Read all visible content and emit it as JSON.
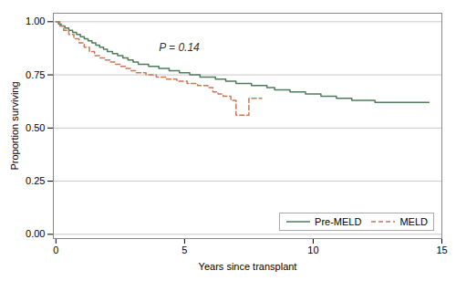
{
  "chart_data": {
    "type": "step",
    "xlabel": "Years since transplant",
    "ylabel": "Proportion surviving",
    "annotations": [
      {
        "text": "P = 0.14",
        "x": 4.0,
        "y": 0.86
      }
    ],
    "xlim": [
      -0.1,
      15
    ],
    "ylim": [
      -0.02,
      1.04
    ],
    "xticks": [
      0,
      5,
      10,
      15
    ],
    "yticks": [
      {
        "value": 0.0,
        "label": "0.00"
      },
      {
        "value": 0.25,
        "label": "0.25"
      },
      {
        "value": 0.5,
        "label": "0.50"
      },
      {
        "value": 0.75,
        "label": "0.75"
      },
      {
        "value": 1.0,
        "label": "1.00"
      }
    ],
    "grid": true,
    "legend": "lower right",
    "series": [
      {
        "name": "Pre-MELD",
        "color": "#4d7c5a",
        "line_style": "solid",
        "x": [
          0.0,
          0.1,
          0.2,
          0.35,
          0.5,
          0.65,
          0.8,
          0.95,
          1.1,
          1.25,
          1.4,
          1.55,
          1.7,
          1.85,
          2.0,
          2.2,
          2.4,
          2.6,
          2.8,
          3.0,
          3.2,
          3.4,
          3.6,
          3.8,
          4.0,
          4.2,
          4.4,
          4.6,
          4.8,
          5.0,
          5.2,
          5.4,
          5.6,
          5.8,
          6.0,
          6.2,
          6.4,
          6.6,
          6.8,
          7.0,
          7.3,
          7.6,
          7.9,
          8.2,
          8.5,
          8.8,
          9.1,
          9.4,
          9.7,
          10.0,
          10.3,
          10.6,
          10.9,
          11.2,
          11.5,
          11.8,
          12.1,
          12.4,
          13.0,
          13.5,
          14.0,
          14.5
        ],
        "values": [
          1.0,
          0.99,
          0.98,
          0.97,
          0.96,
          0.95,
          0.94,
          0.93,
          0.92,
          0.91,
          0.9,
          0.89,
          0.88,
          0.87,
          0.86,
          0.85,
          0.84,
          0.83,
          0.82,
          0.81,
          0.8,
          0.8,
          0.79,
          0.79,
          0.78,
          0.78,
          0.77,
          0.77,
          0.76,
          0.76,
          0.75,
          0.75,
          0.74,
          0.74,
          0.74,
          0.73,
          0.73,
          0.72,
          0.72,
          0.71,
          0.71,
          0.7,
          0.7,
          0.69,
          0.68,
          0.68,
          0.67,
          0.67,
          0.66,
          0.66,
          0.65,
          0.65,
          0.64,
          0.64,
          0.63,
          0.63,
          0.63,
          0.62,
          0.62,
          0.62,
          0.62,
          0.62
        ]
      },
      {
        "name": "MELD",
        "color": "#cc7755",
        "line_style": "dashed",
        "x": [
          0.0,
          0.15,
          0.3,
          0.5,
          0.7,
          0.9,
          1.1,
          1.3,
          1.5,
          1.7,
          1.9,
          2.1,
          2.3,
          2.5,
          2.7,
          2.9,
          3.1,
          3.3,
          3.5,
          3.7,
          3.9,
          4.1,
          4.3,
          4.5,
          4.7,
          4.9,
          5.1,
          5.3,
          5.5,
          5.7,
          5.9,
          6.1,
          6.3,
          6.5,
          6.8,
          7.0,
          7.2,
          7.5,
          7.8,
          8.0
        ],
        "values": [
          1.0,
          0.98,
          0.96,
          0.94,
          0.92,
          0.9,
          0.88,
          0.86,
          0.84,
          0.83,
          0.82,
          0.81,
          0.8,
          0.79,
          0.78,
          0.77,
          0.76,
          0.76,
          0.75,
          0.75,
          0.74,
          0.74,
          0.73,
          0.73,
          0.72,
          0.72,
          0.71,
          0.71,
          0.7,
          0.7,
          0.69,
          0.67,
          0.66,
          0.65,
          0.63,
          0.56,
          0.56,
          0.64,
          0.64,
          0.64
        ]
      }
    ]
  }
}
